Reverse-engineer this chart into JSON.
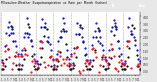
{
  "title": "Milwaukee Weather Evapotranspiration vs Rain per Month (Inches)",
  "background_color": "#e8e8e8",
  "plot_background": "#ffffff",
  "ylabel_right_values": [
    0.0,
    0.5,
    1.0,
    1.5,
    2.0,
    2.5,
    3.0,
    3.5,
    4.0
  ],
  "ylim": [
    -0.3,
    4.3
  ],
  "num_years": 8,
  "months_per_year": 12,
  "et_data": [
    0.15,
    0.15,
    0.35,
    0.9,
    1.6,
    2.6,
    3.3,
    3.1,
    2.2,
    1.1,
    0.4,
    0.1,
    0.1,
    0.1,
    0.4,
    0.85,
    1.55,
    2.75,
    3.45,
    3.2,
    2.25,
    1.1,
    0.35,
    0.1,
    0.1,
    0.2,
    0.5,
    1.0,
    1.65,
    2.55,
    3.25,
    3.05,
    2.1,
    1.0,
    0.38,
    0.1,
    0.1,
    0.12,
    0.32,
    0.75,
    1.4,
    2.45,
    3.05,
    2.9,
    2.0,
    1.05,
    0.32,
    0.1,
    0.1,
    0.18,
    0.42,
    1.05,
    1.75,
    2.7,
    3.38,
    3.15,
    2.15,
    1.15,
    0.38,
    0.1,
    0.1,
    0.12,
    0.32,
    0.82,
    1.52,
    2.52,
    3.12,
    2.98,
    2.08,
    1.02,
    0.32,
    0.1,
    0.1,
    0.18,
    0.48,
    0.92,
    1.58,
    2.62,
    3.28,
    3.08,
    2.18,
    1.08,
    0.38,
    0.1,
    0.1,
    0.12,
    0.38,
    0.98,
    1.68,
    2.68,
    3.38,
    3.18,
    2.28,
    1.18,
    0.38,
    0.1
  ],
  "rain_data": [
    0.8,
    0.6,
    1.8,
    2.8,
    3.2,
    3.6,
    2.8,
    3.2,
    2.8,
    2.2,
    1.8,
    1.2,
    0.5,
    1.2,
    1.5,
    2.5,
    2.8,
    3.9,
    2.5,
    2.7,
    2.2,
    1.8,
    1.2,
    0.7,
    0.7,
    0.5,
    2.2,
    3.2,
    3.8,
    3.2,
    3.5,
    2.2,
    2.5,
    2.0,
    1.5,
    0.9,
    0.4,
    0.9,
    1.2,
    2.2,
    2.5,
    2.9,
    3.9,
    3.5,
    2.9,
    1.5,
    0.9,
    0.5,
    1.2,
    0.6,
    1.7,
    2.7,
    3.5,
    2.7,
    3.2,
    2.5,
    2.2,
    1.7,
    1.2,
    0.8,
    0.6,
    0.8,
    1.9,
    2.5,
    2.9,
    3.5,
    2.2,
    2.9,
    2.5,
    1.9,
    1.5,
    1.0,
    0.8,
    0.6,
    1.5,
    2.9,
    3.2,
    3.7,
    3.5,
    3.2,
    2.2,
    1.7,
    1.2,
    0.6,
    0.5,
    0.7,
    2.2,
    3.2,
    3.9,
    2.9,
    2.7,
    2.5,
    1.9,
    1.5,
    0.9,
    0.7
  ],
  "grid_color": "#aaaaaa",
  "dot_size": 1.2,
  "tick_color": "#333333",
  "legend_blue_color": "#0000cc",
  "legend_red_color": "#cc0000"
}
